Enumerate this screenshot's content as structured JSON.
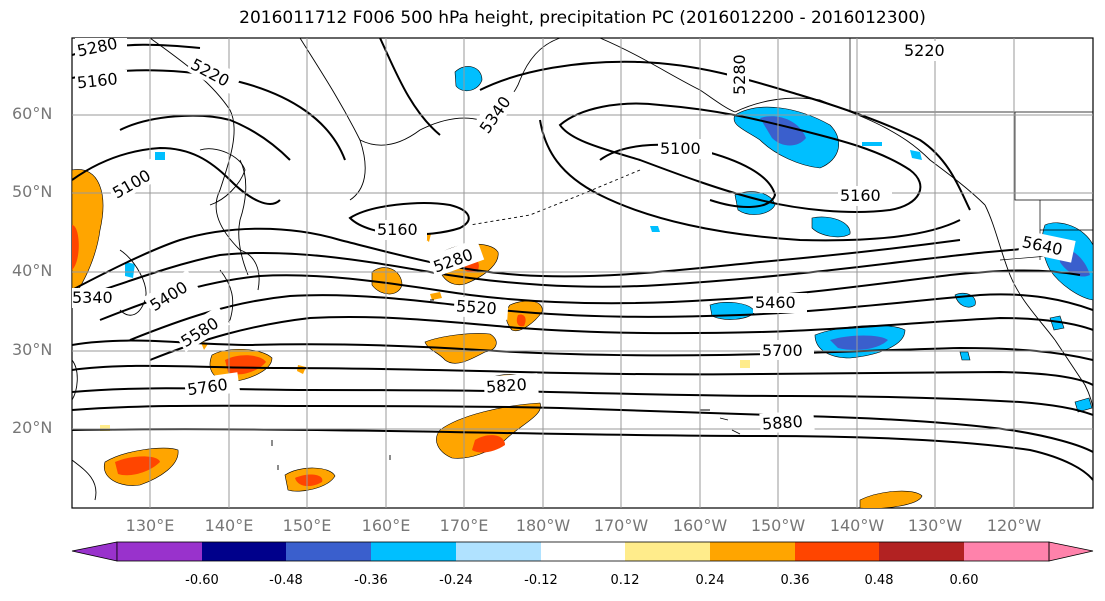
{
  "title": "2016011712 F006 500 hPa height, precipitation PC (2016012200 - 2016012300)",
  "lat_labels": [
    "60°N",
    "50°N",
    "40°N",
    "30°N",
    "20°N"
  ],
  "lon_labels": [
    "130°E",
    "140°E",
    "150°E",
    "160°E",
    "170°E",
    "180°W",
    "170°W",
    "160°W",
    "150°W",
    "140°W",
    "130°W",
    "120°W"
  ],
  "colorbar": {
    "ticks": [
      "-0.60",
      "-0.48",
      "-0.36",
      "-0.24",
      "-0.12",
      "0.12",
      "0.24",
      "0.36",
      "0.48",
      "0.60"
    ],
    "colors": [
      "#9932cc",
      "#00008b",
      "#3a5fcd",
      "#00bfff",
      "#b0e2ff",
      "#ffffff",
      "#ffec8b",
      "#ffa500",
      "#ff4500",
      "#b22222",
      "#ff82ab"
    ]
  },
  "contour_labels": [
    "5280",
    "5160",
    "5220",
    "5340",
    "5280",
    "5220",
    "5100",
    "5160",
    "5160",
    "5280",
    "5400",
    "5340",
    "5580",
    "5520",
    "5460",
    "5640",
    "5760",
    "5700",
    "5820",
    "5880",
    "5100"
  ]
}
